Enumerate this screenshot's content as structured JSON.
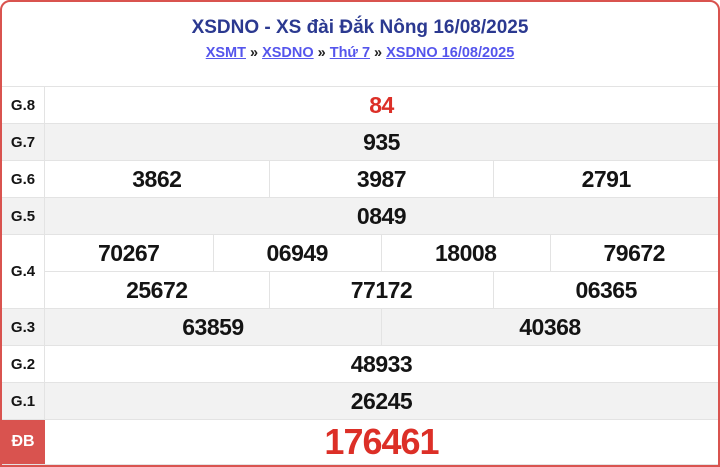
{
  "colors": {
    "accent_red": "#d9534f",
    "red_number": "#dc2f27",
    "title_navy": "#2b3990",
    "link_blue": "#5555ec",
    "alt_row_bg": "#f2f2f2",
    "border_gray": "#e3e3e3"
  },
  "header": {
    "title": "XSDNO - XS đài Đắk Nông 16/08/2025",
    "breadcrumb": {
      "separator": "»",
      "links": [
        "XSMT",
        "XSDNO",
        "Thứ 7",
        "XSDNO 16/08/2025"
      ]
    }
  },
  "table": {
    "rows": [
      {
        "label": "G.8",
        "cells": [
          "84"
        ]
      },
      {
        "label": "G.7",
        "cells": [
          "935"
        ]
      },
      {
        "label": "G.6",
        "cells": [
          "3862",
          "3987",
          "2791"
        ]
      },
      {
        "label": "G.5",
        "cells": [
          "0849"
        ]
      },
      {
        "label": "G.4",
        "cells": [
          "70267",
          "06949",
          "18008",
          "79672"
        ],
        "cells2": [
          "25672",
          "77172",
          "06365"
        ]
      },
      {
        "label": "G.3",
        "cells": [
          "63859",
          "40368"
        ]
      },
      {
        "label": "G.2",
        "cells": [
          "48933"
        ]
      },
      {
        "label": "G.1",
        "cells": [
          "26245"
        ]
      },
      {
        "label": "ĐB",
        "cells": [
          "176461"
        ]
      }
    ]
  }
}
